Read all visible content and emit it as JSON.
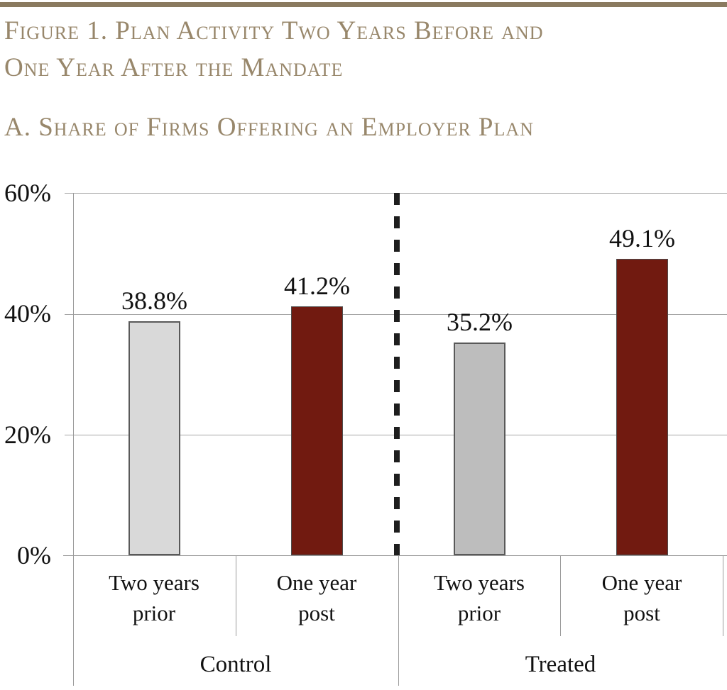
{
  "header": {
    "title_line1": "Figure 1. Plan Activity Two Years Before and",
    "title_line2": "One Year After the Mandate",
    "panel_title": "A. Share of Firms Offering an Employer Plan"
  },
  "colors": {
    "accent_rule": "#8a7a5f",
    "title_text": "#98876b",
    "gridline": "#a6a6a6",
    "axis": "#9b9b9b",
    "divider": "#1e1e1e",
    "label_text": "#111111",
    "bar_gray_light": "#d9d9d9",
    "bar_gray_medium": "#bdbdbd",
    "bar_dark_red": "#711a10"
  },
  "chart_data": {
    "type": "bar",
    "title": "Figure 1. Plan Activity Two Years Before and One Year After the Mandate",
    "subtitle": "A. Share of Firms Offering an Employer Plan",
    "xlabel": "",
    "ylabel": "",
    "grid": true,
    "group_divider": "dashed vertical line between Control and Treated",
    "y_axis": {
      "ticks": [
        "0%",
        "20%",
        "40%",
        "60%"
      ],
      "tick_values": [
        0,
        20,
        40,
        60
      ],
      "min": 0,
      "max": 60,
      "unit": "percent"
    },
    "groups": [
      {
        "label": "Control",
        "bars": [
          {
            "category": "Two years prior",
            "value": 38.8,
            "data_label": "38.8%",
            "fill": "#d9d9d9",
            "border": "#595959",
            "border_px": 2
          },
          {
            "category": "One year post",
            "value": 41.2,
            "data_label": "41.2%",
            "fill": "#711a10",
            "border": "#4d4d4d",
            "border_px": 1
          }
        ]
      },
      {
        "label": "Treated",
        "bars": [
          {
            "category": "Two years prior",
            "value": 35.2,
            "data_label": "35.2%",
            "fill": "#bdbdbd",
            "border": "#595959",
            "border_px": 2
          },
          {
            "category": "One year post",
            "value": 49.1,
            "data_label": "49.1%",
            "fill": "#711a10",
            "border": "#4d4d4d",
            "border_px": 1
          }
        ]
      }
    ]
  }
}
